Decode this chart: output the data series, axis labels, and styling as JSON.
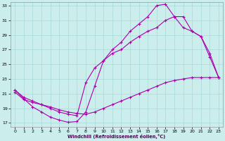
{
  "xlabel": "Windchill (Refroidissement éolien,°C)",
  "bg_color": "#cbeeed",
  "grid_color": "#a8d8d8",
  "line_color": "#aa00aa",
  "xlim": [
    -0.5,
    23.5
  ],
  "ylim": [
    16.5,
    33.5
  ],
  "xticks": [
    0,
    1,
    2,
    3,
    4,
    5,
    6,
    7,
    8,
    9,
    10,
    11,
    12,
    13,
    14,
    15,
    16,
    17,
    18,
    19,
    20,
    21,
    22,
    23
  ],
  "yticks": [
    17,
    19,
    21,
    23,
    25,
    27,
    29,
    31,
    33
  ],
  "line1_x": [
    0,
    1,
    2,
    3,
    4,
    5,
    6,
    7,
    8,
    9,
    10,
    11,
    12,
    13,
    14,
    15,
    16,
    17,
    18,
    19,
    20,
    21,
    22,
    23
  ],
  "line1_y": [
    21.5,
    20.3,
    19.2,
    18.5,
    17.8,
    17.4,
    17.1,
    17.2,
    18.5,
    22.0,
    25.5,
    27.0,
    28.0,
    29.5,
    30.5,
    31.5,
    33.0,
    33.2,
    31.5,
    30.0,
    29.5,
    28.8,
    26.0,
    23.2
  ],
  "line2_x": [
    0,
    1,
    2,
    3,
    4,
    5,
    6,
    7,
    8,
    9,
    10,
    11,
    12,
    13,
    14,
    15,
    16,
    17,
    18,
    19,
    20,
    21,
    22,
    23
  ],
  "line2_y": [
    21.5,
    20.5,
    20.0,
    19.5,
    19.0,
    18.5,
    18.2,
    18.0,
    22.5,
    24.5,
    25.5,
    26.5,
    27.0,
    28.0,
    28.8,
    29.5,
    30.0,
    31.0,
    31.5,
    31.5,
    29.5,
    28.8,
    26.5,
    23.2
  ],
  "line3_x": [
    0,
    1,
    2,
    3,
    4,
    5,
    6,
    7,
    8,
    9,
    10,
    11,
    12,
    13,
    14,
    15,
    16,
    17,
    18,
    19,
    20,
    21,
    22,
    23
  ],
  "line3_y": [
    21.2,
    20.2,
    19.8,
    19.5,
    19.2,
    18.8,
    18.5,
    18.3,
    18.2,
    18.5,
    19.0,
    19.5,
    20.0,
    20.5,
    21.0,
    21.5,
    22.0,
    22.5,
    22.8,
    23.0,
    23.2,
    23.2,
    23.2,
    23.2
  ]
}
